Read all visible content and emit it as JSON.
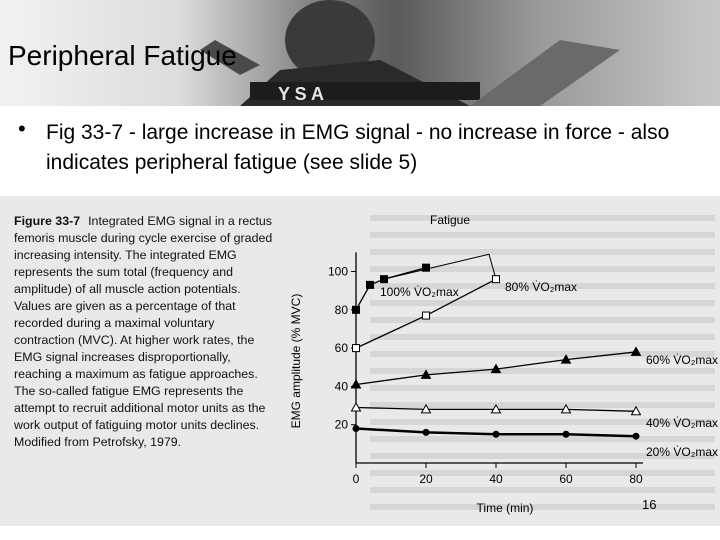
{
  "slide": {
    "title": "Peripheral Fatigue",
    "bullet_marker": "•",
    "bullet_text": "Fig 33-7 - large increase in EMG signal - no increase in force - also indicates peripheral fatigue (see slide 5)",
    "page_number": "16"
  },
  "figure": {
    "caption_label": "Figure 33-7",
    "caption_text": "Integrated EMG signal in a rectus femoris muscle during cycle exercise of graded increasing intensity. The integrated EMG represents the sum total (frequency and amplitude) of all muscle action potentials. Values are given as a percentage of that recorded during a maximal voluntary contraction (MVC). At higher work rates, the EMG signal increases disproportionally, reaching a maximum as fatigue approaches. The so-called fatigue EMG represents the attempt to recruit additional motor units as the work output of fatiguing motor units declines. Modified from Petrofsky, 1979."
  },
  "chart_data": {
    "type": "line",
    "xlabel": "Time (min)",
    "ylabel": "EMG amplitude (% MVC)",
    "xlim": [
      0,
      80
    ],
    "ylim": [
      0,
      110
    ],
    "x_ticks": [
      0,
      20,
      40,
      60,
      80
    ],
    "y_ticks": [
      20,
      40,
      60,
      80,
      100
    ],
    "annotation": "Fatigue",
    "series": [
      {
        "name": "100%",
        "label_suffix": "V̇O₂max",
        "marker": "square-filled",
        "x": [
          0,
          4,
          8,
          20
        ],
        "y": [
          80,
          93,
          96,
          102
        ]
      },
      {
        "name": "80%",
        "label_suffix": "V̇O₂max",
        "marker": "square-open",
        "x": [
          0,
          20,
          40
        ],
        "y": [
          60,
          77,
          96
        ]
      },
      {
        "name": "60%",
        "label_suffix": "V̇O₂max",
        "marker": "triangle-filled",
        "x": [
          0,
          20,
          40,
          60,
          80
        ],
        "y": [
          41,
          46,
          49,
          54,
          58
        ]
      },
      {
        "name": "40%",
        "label_suffix": "V̇O₂max",
        "marker": "triangle-open",
        "x": [
          0,
          20,
          40,
          60,
          80
        ],
        "y": [
          29,
          28,
          28,
          28,
          27
        ]
      },
      {
        "name": "20%",
        "label_suffix": "V̇O₂max",
        "marker": "circle-filled",
        "x": [
          0,
          20,
          40,
          60,
          80
        ],
        "y": [
          18,
          16,
          15,
          15,
          14
        ]
      }
    ]
  }
}
